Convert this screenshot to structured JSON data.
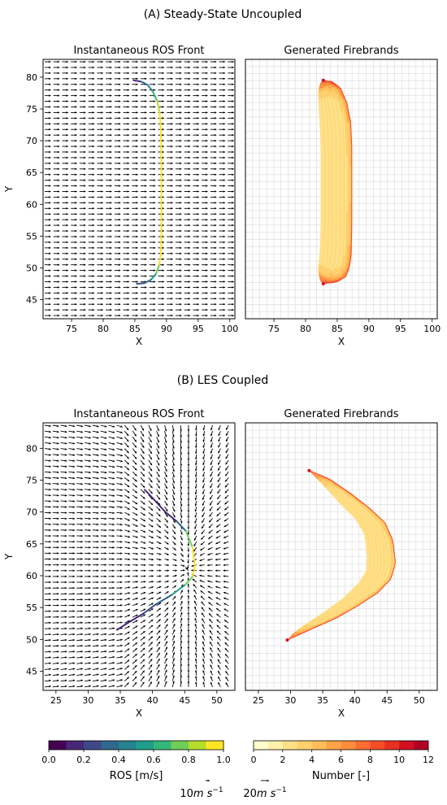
{
  "figure": {
    "section_a_title": "(A) Steady-State Uncoupled",
    "section_b_title": "(B) LES Coupled"
  },
  "chart_data": [
    {
      "type": "quiver",
      "panel": "A-left",
      "title": "Instantaneous ROS Front",
      "xlabel": "X",
      "ylabel": "Y",
      "xlim": [
        70.5,
        100.8
      ],
      "ylim": [
        42,
        82.8
      ],
      "xticks": [
        75,
        80,
        85,
        90,
        95,
        100
      ],
      "yticks": [
        45,
        50,
        55,
        60,
        65,
        70,
        75,
        80
      ],
      "wind_field": {
        "pattern": "uniform",
        "direction": "+x",
        "grid_cols": 22,
        "grid_rows": 46
      },
      "front": {
        "colored_by": "ROS [m/s]",
        "points": [
          [
            84.8,
            79.5
          ],
          [
            86.0,
            79.3
          ],
          [
            87.0,
            78.8
          ],
          [
            87.8,
            77.8
          ],
          [
            88.5,
            76.3
          ],
          [
            88.9,
            74.5
          ],
          [
            89.1,
            72
          ],
          [
            89.2,
            68
          ],
          [
            89.2,
            63.5
          ],
          [
            89.2,
            59
          ],
          [
            89.2,
            55
          ],
          [
            89.1,
            52
          ],
          [
            88.8,
            50.3
          ],
          [
            88.3,
            49
          ],
          [
            87.5,
            48.1
          ],
          [
            86.5,
            47.6
          ],
          [
            85.3,
            47.5
          ]
        ],
        "ros_values": [
          0.1,
          0.25,
          0.4,
          0.55,
          0.75,
          0.9,
          1.0,
          1.0,
          1.0,
          1.0,
          1.0,
          0.97,
          0.85,
          0.65,
          0.45,
          0.3,
          0.2
        ]
      }
    },
    {
      "type": "area",
      "panel": "A-right",
      "title": "Generated Firebrands",
      "xlabel": "X",
      "ylabel": "",
      "xlim": [
        70.5,
        100.8
      ],
      "ylim": [
        42,
        82.8
      ],
      "xticks": [
        75,
        80,
        85,
        90,
        95,
        100
      ],
      "grid": true,
      "firebrand_band": {
        "colored_by": "Number [-]",
        "outer_edge": [
          [
            82.8,
            79.5
          ],
          [
            84.2,
            79.3
          ],
          [
            85.5,
            78.3
          ],
          [
            86.5,
            76
          ],
          [
            87.1,
            73
          ],
          [
            87.3,
            69
          ],
          [
            87.3,
            63
          ],
          [
            87.3,
            57
          ],
          [
            87.2,
            52
          ],
          [
            86.9,
            50
          ],
          [
            86.3,
            48.6
          ],
          [
            85.0,
            47.8
          ],
          [
            82.8,
            47.5
          ]
        ],
        "inner_edge": [
          [
            82.8,
            79.5
          ],
          [
            82.3,
            79.0
          ],
          [
            82.0,
            77.5
          ],
          [
            82.1,
            75
          ],
          [
            82.3,
            72
          ],
          [
            82.4,
            68
          ],
          [
            82.4,
            63
          ],
          [
            82.4,
            57
          ],
          [
            82.3,
            53
          ],
          [
            82.1,
            51
          ],
          [
            82.0,
            49.5
          ],
          [
            82.3,
            48
          ],
          [
            82.8,
            47.5
          ]
        ],
        "inner_fraction_where_max_count": [
          0.0,
          0.08,
          0.92,
          1.0
        ],
        "max_count_at_tips": 12
      }
    },
    {
      "type": "quiver",
      "panel": "B-left",
      "title": "Instantaneous ROS Front",
      "xlabel": "X",
      "ylabel": "Y",
      "xlim": [
        23,
        52.8
      ],
      "ylim": [
        42,
        84
      ],
      "xticks": [
        25,
        30,
        35,
        40,
        45,
        50
      ],
      "yticks": [
        45,
        50,
        55,
        60,
        65,
        70,
        75,
        80
      ],
      "wind_field": {
        "pattern": "converging toward the fire front",
        "grid_cols": 24,
        "grid_rows": 46
      },
      "front": {
        "colored_by": "ROS [m/s]",
        "points": [
          [
            38.8,
            73.5
          ],
          [
            40.2,
            72
          ],
          [
            42,
            70
          ],
          [
            43.8,
            68.5
          ],
          [
            45.2,
            67
          ],
          [
            46.2,
            64.5
          ],
          [
            46.6,
            61.5
          ],
          [
            46.2,
            59.8
          ],
          [
            45,
            58.5
          ],
          [
            43,
            57
          ],
          [
            40.5,
            55.5
          ],
          [
            38.5,
            54
          ],
          [
            36.5,
            52.8
          ],
          [
            34.5,
            51.5
          ]
        ],
        "ros_values": [
          0.1,
          0.1,
          0.1,
          0.12,
          0.55,
          0.95,
          1.0,
          0.8,
          0.6,
          0.4,
          0.25,
          0.15,
          0.1,
          0.1
        ]
      }
    },
    {
      "type": "area",
      "panel": "B-right",
      "title": "Generated Firebrands",
      "xlabel": "X",
      "ylabel": "",
      "xlim": [
        23,
        52.8
      ],
      "ylim": [
        42,
        84
      ],
      "xticks": [
        25,
        30,
        35,
        40,
        45,
        50
      ],
      "grid": true,
      "firebrand_band": {
        "colored_by": "Number [-]",
        "outer_edge": [
          [
            32.9,
            76.5
          ],
          [
            36,
            75.2
          ],
          [
            39.5,
            72.8
          ],
          [
            42.5,
            70.4
          ],
          [
            44.7,
            68.3
          ],
          [
            45.9,
            65.5
          ],
          [
            46.3,
            62
          ],
          [
            45.6,
            59.5
          ],
          [
            43.5,
            57.3
          ],
          [
            40.5,
            55.3
          ],
          [
            37,
            53.3
          ],
          [
            33,
            51.5
          ],
          [
            29.5,
            49.9
          ]
        ],
        "inner_edge": [
          [
            32.9,
            76.5
          ],
          [
            35,
            74.3
          ],
          [
            37.5,
            71.5
          ],
          [
            40,
            69
          ],
          [
            41.5,
            66.5
          ],
          [
            41.9,
            63
          ],
          [
            41.8,
            60.8
          ],
          [
            40.7,
            59
          ],
          [
            38.2,
            56.5
          ],
          [
            35.5,
            54.5
          ],
          [
            32.5,
            52.5
          ],
          [
            30.5,
            51
          ],
          [
            29.5,
            49.9
          ]
        ],
        "max_count_at_tips": 12
      }
    },
    {
      "type": "colorbar",
      "label": "ROS [m/s]",
      "colormap": "viridis",
      "ticks": [
        "0.0",
        "0.2",
        "0.4",
        "0.6",
        "0.8",
        "1.0"
      ],
      "range": [
        0,
        1
      ],
      "levels": 10
    },
    {
      "type": "colorbar",
      "label": "Number [-]",
      "colormap": "YlOrRd",
      "ticks": [
        "0",
        "2",
        "4",
        "6",
        "8",
        "10",
        "12"
      ],
      "range": [
        0,
        12
      ],
      "levels": 12
    },
    {
      "type": "quiver-key",
      "keys": [
        {
          "label": "10$m$ $s^{-1}$",
          "speed": 10
        },
        {
          "label": "20$m$ $s^{-1}$",
          "speed": 20
        }
      ]
    }
  ],
  "colors": {
    "viridis_steps": [
      "#440154",
      "#482878",
      "#3e4989",
      "#31688e",
      "#26828e",
      "#1f9e89",
      "#35b779",
      "#6ece58",
      "#b5de2b",
      "#fde725"
    ],
    "ylorrd_steps": [
      "#ffffcc",
      "#fff1a9",
      "#fee087",
      "#fed16f",
      "#febf5a",
      "#fea446",
      "#fd8d3c",
      "#fc6c33",
      "#f54d29",
      "#e7301f",
      "#d31121",
      "#b00026"
    ],
    "axis": "#000000",
    "grid": "#d9d9d9"
  }
}
